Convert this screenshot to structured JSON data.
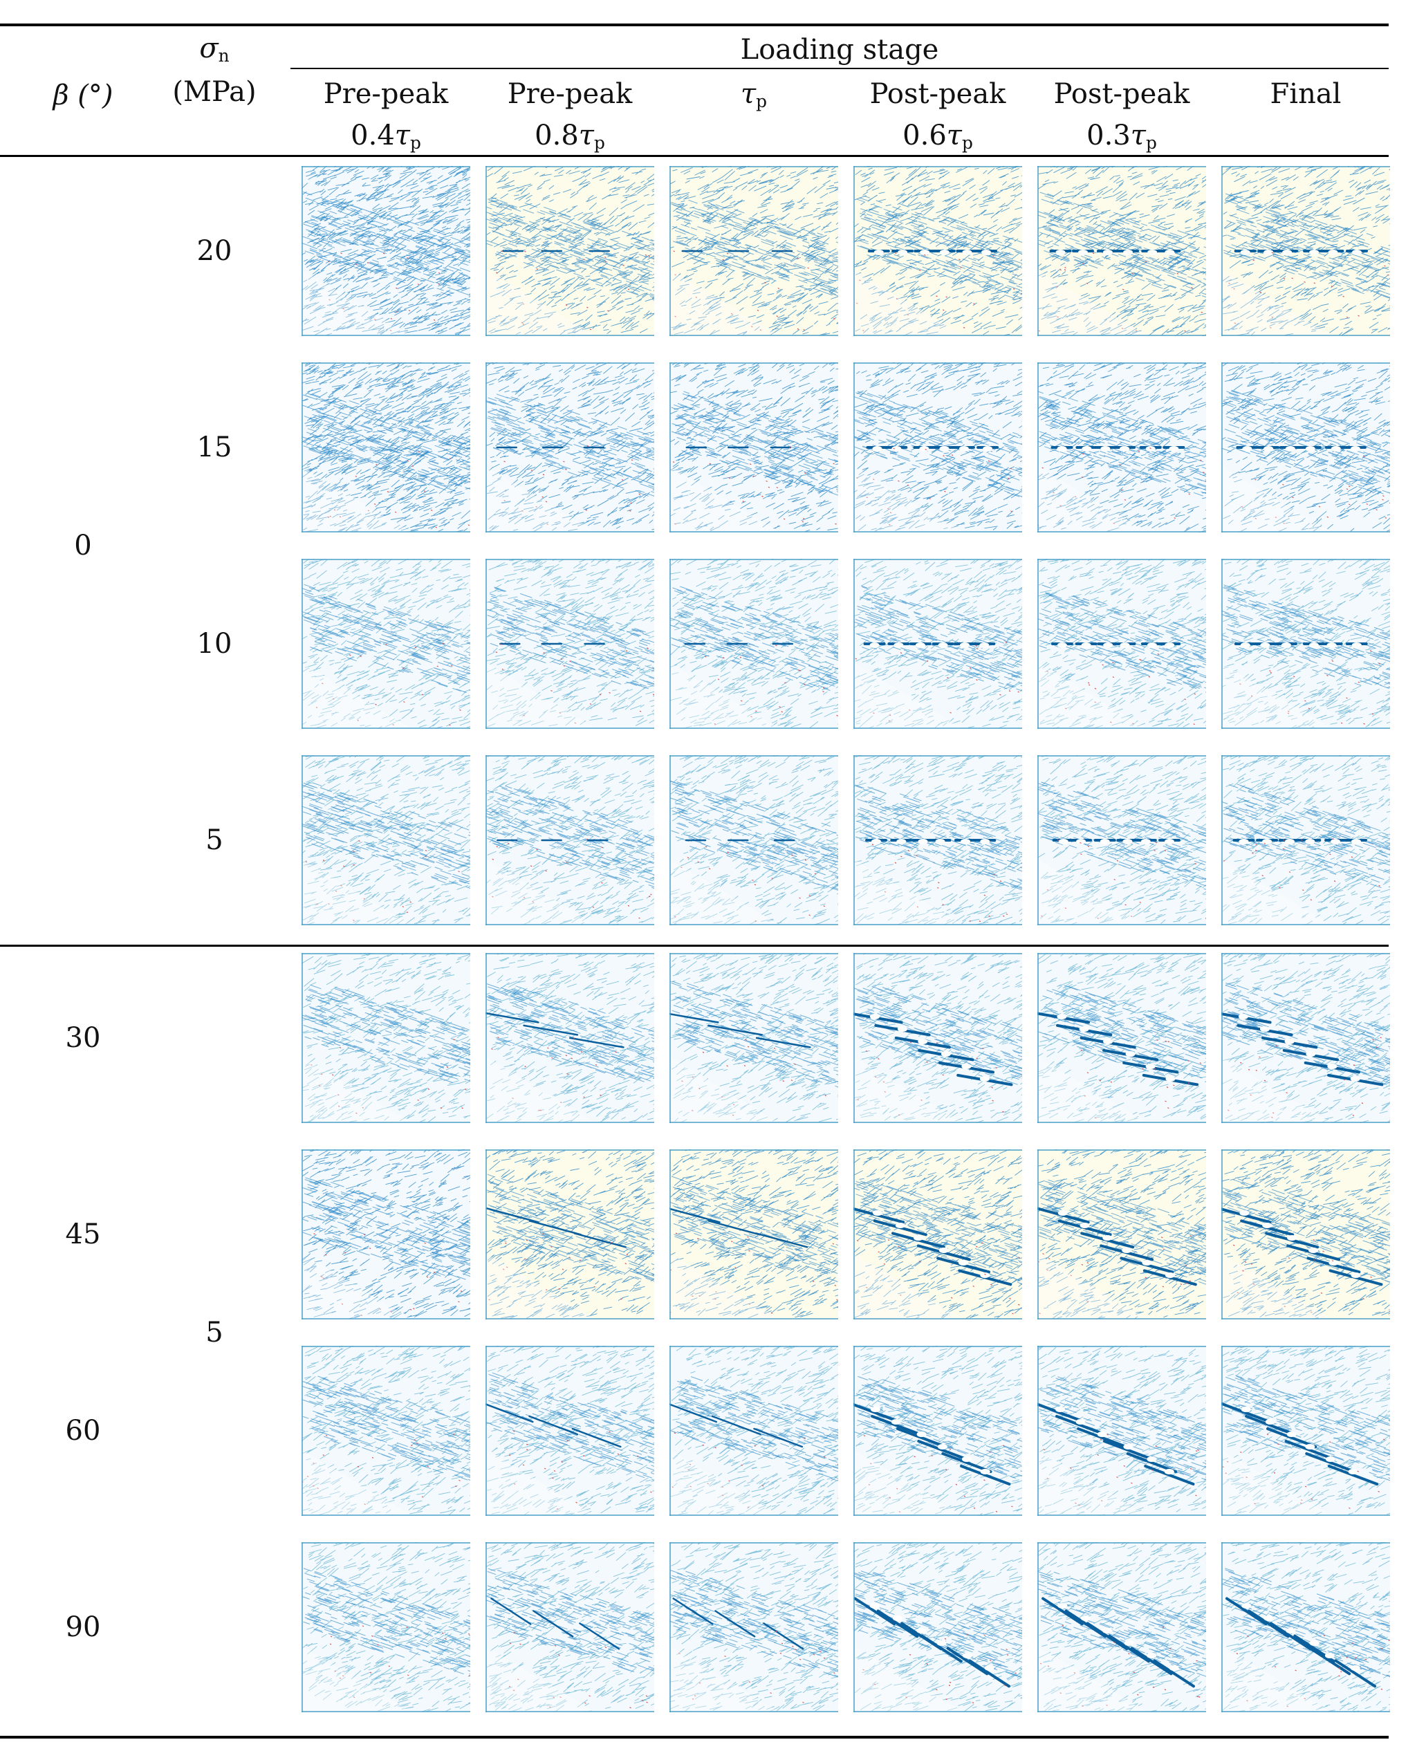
{
  "header": {
    "beta_label": "β (°)",
    "sigma_label": "σ",
    "sigma_sub": "n",
    "sigma_unit": "(MPa)",
    "loading_stage": "Loading stage",
    "stages": [
      {
        "line1": "Pre-peak",
        "coef": "0.4",
        "sym": "τ",
        "sub": "p"
      },
      {
        "line1": "Pre-peak",
        "coef": "0.8",
        "sym": "τ",
        "sub": "p"
      },
      {
        "line1": "",
        "coef": "",
        "sym": "τ",
        "sub": "p"
      },
      {
        "line1": "Post-peak",
        "coef": "0.6",
        "sym": "τ",
        "sub": "p"
      },
      {
        "line1": "Post-peak",
        "coef": "0.3",
        "sym": "τ",
        "sub": "p"
      },
      {
        "line1": "Final",
        "coef": "",
        "sym": "",
        "sub": ""
      }
    ]
  },
  "groups": [
    {
      "beta": "0",
      "sigma_labels": [
        "20",
        "15",
        "10",
        "5"
      ]
    },
    {
      "beta_labels": [
        "30",
        "45",
        "60",
        "90"
      ],
      "sigma": "5"
    }
  ],
  "colors": {
    "crack": "#1a7fc4",
    "matrix": "#5fb0d4",
    "tension": "#e05050",
    "background": "#fdfbe9"
  }
}
